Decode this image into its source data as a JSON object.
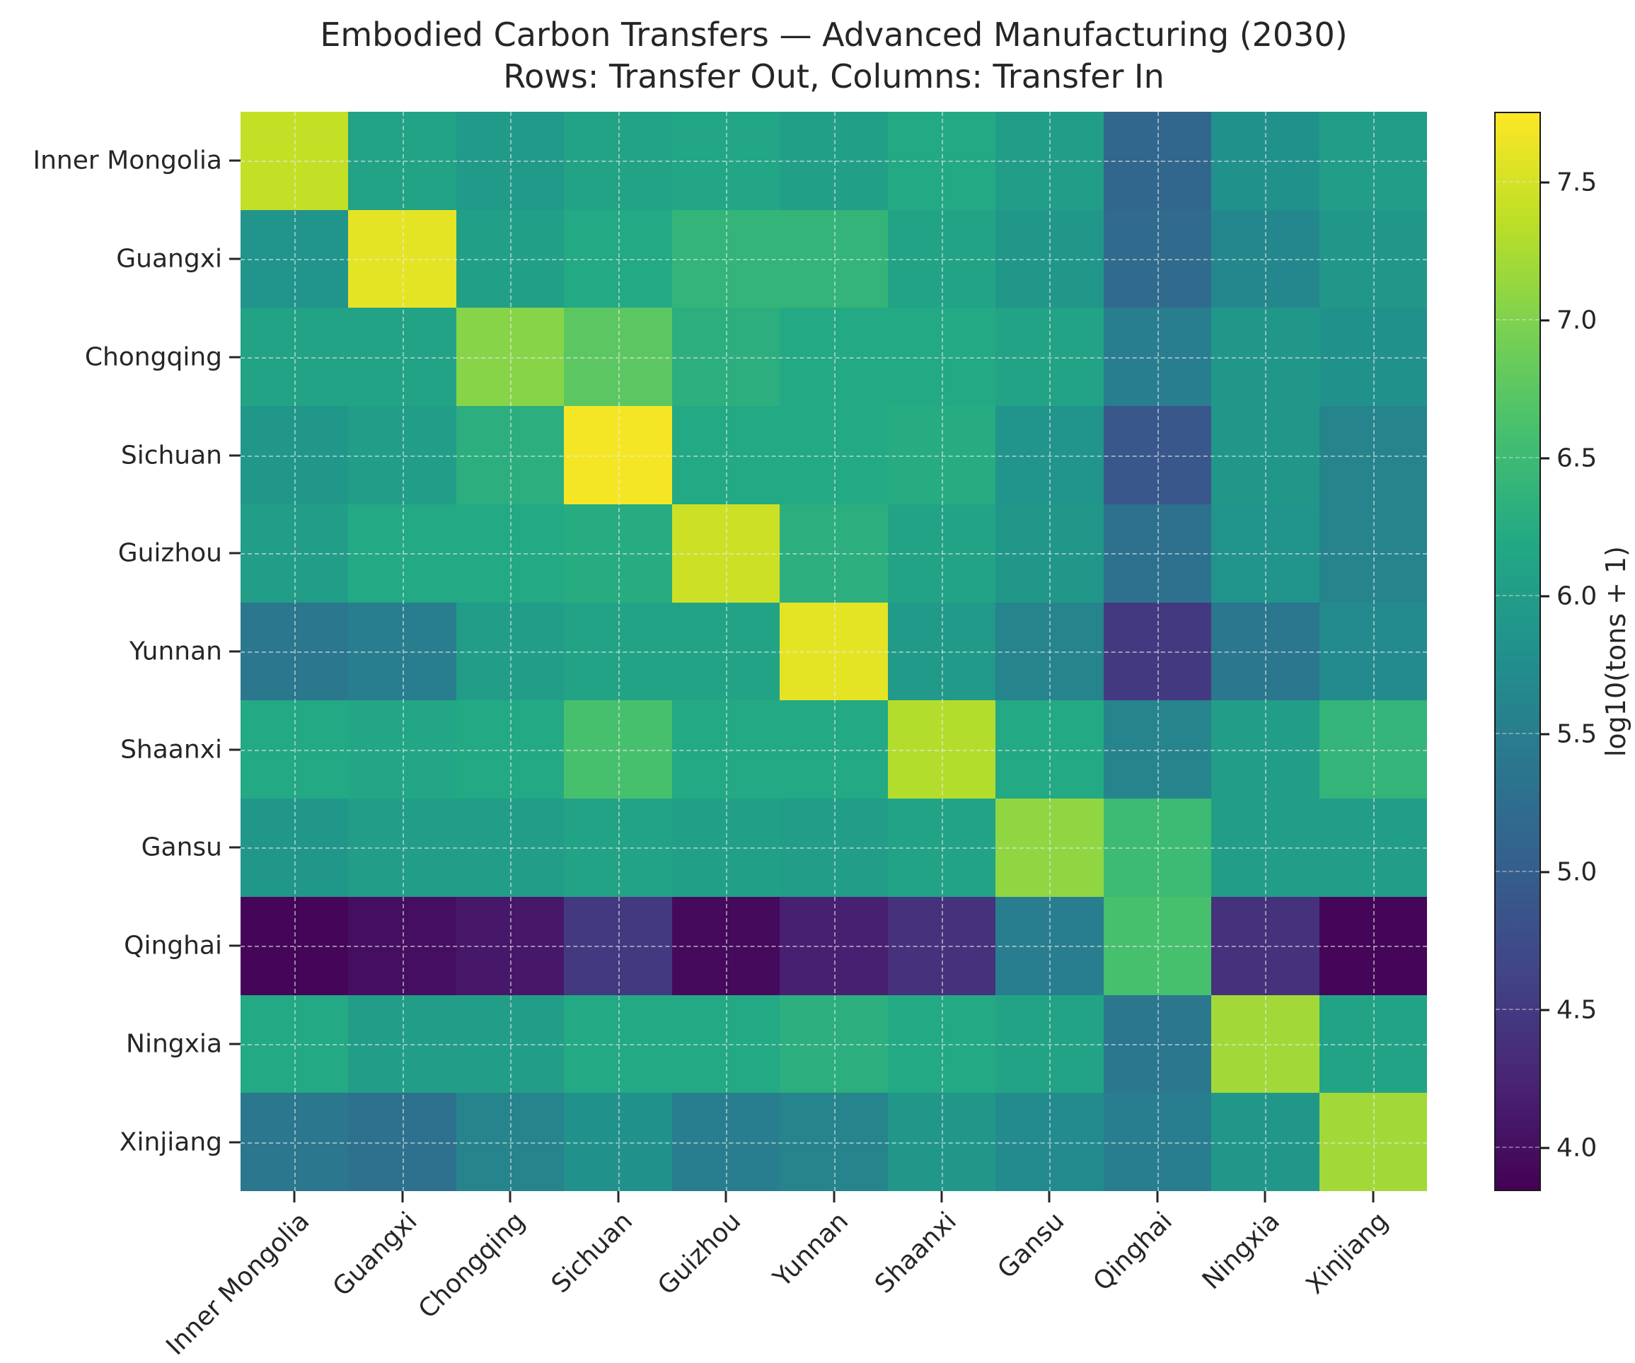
{
  "figure": {
    "title": "Embodied Carbon Transfers — Advanced Manufacturing (2030)",
    "subtitle": "Rows: Transfer Out, Columns: Transfer In"
  },
  "chart_data": {
    "type": "heatmap",
    "title": "Embodied Carbon Transfers — Advanced Manufacturing (2030)",
    "subtitle": "Rows: Transfer Out, Columns: Transfer In",
    "rows_meaning": "Transfer Out",
    "cols_meaning": "Transfer In",
    "colormap": "viridis",
    "categories": [
      "Inner Mongolia",
      "Guangxi",
      "Chongqing",
      "Sichuan",
      "Guizhou",
      "Yunnan",
      "Shaanxi",
      "Gansu",
      "Qinghai",
      "Ningxia",
      "Xinjiang"
    ],
    "values": [
      [
        7.4,
        6.1,
        5.95,
        6.1,
        6.15,
        6.05,
        6.2,
        6.0,
        5.15,
        5.8,
        6.0
      ],
      [
        5.85,
        7.6,
        6.05,
        6.2,
        6.4,
        6.4,
        6.1,
        5.9,
        5.2,
        5.65,
        5.9
      ],
      [
        6.1,
        6.1,
        7.05,
        6.75,
        6.3,
        6.2,
        6.2,
        6.1,
        5.5,
        5.9,
        5.8
      ],
      [
        5.9,
        6.0,
        6.3,
        7.7,
        6.2,
        6.2,
        6.25,
        5.85,
        4.9,
        5.9,
        5.6
      ],
      [
        6.0,
        6.2,
        6.2,
        6.25,
        7.45,
        6.3,
        6.1,
        5.9,
        5.3,
        5.85,
        5.6
      ],
      [
        5.4,
        5.5,
        6.0,
        6.1,
        6.1,
        7.6,
        5.95,
        5.6,
        4.5,
        5.4,
        5.7
      ],
      [
        6.2,
        6.15,
        6.2,
        6.6,
        6.2,
        6.2,
        7.3,
        6.2,
        5.6,
        6.0,
        6.4
      ],
      [
        5.9,
        6.0,
        6.0,
        6.1,
        6.05,
        6.0,
        6.1,
        7.1,
        6.5,
        6.0,
        6.0
      ],
      [
        3.9,
        4.0,
        4.1,
        4.5,
        3.95,
        4.2,
        4.4,
        5.5,
        6.6,
        4.4,
        3.9
      ],
      [
        6.2,
        6.0,
        6.0,
        6.2,
        6.2,
        6.3,
        6.2,
        6.1,
        5.4,
        7.2,
        6.1
      ],
      [
        5.4,
        5.3,
        5.6,
        5.8,
        5.5,
        5.6,
        5.9,
        5.7,
        5.5,
        5.9,
        7.2
      ]
    ],
    "colorbar": {
      "label": "log10(tons + 1)",
      "ticks": [
        4.0,
        4.5,
        5.0,
        5.5,
        6.0,
        6.5,
        7.0,
        7.5
      ],
      "vmin": 3.85,
      "vmax": 7.75
    },
    "grid": "dashed light lines at tick centers",
    "background_color": "#ffffff"
  }
}
